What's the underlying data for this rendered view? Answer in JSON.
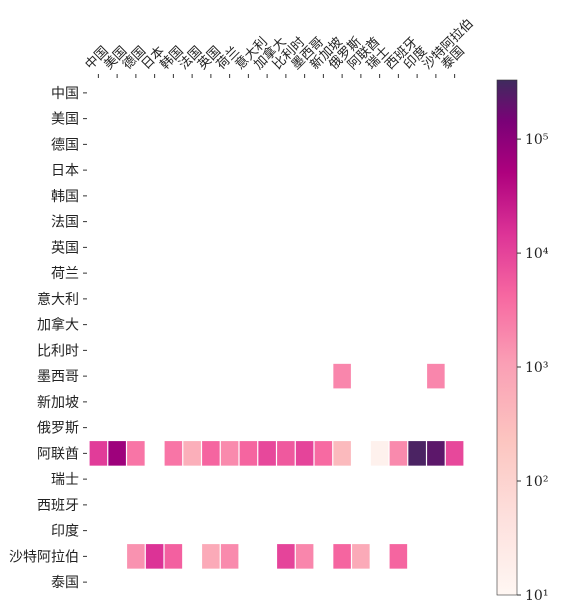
{
  "chart_data": {
    "type": "heatmap",
    "title": "",
    "xlabel": "",
    "ylabel": "",
    "x_categories": [
      "中国",
      "美国",
      "德国",
      "日本",
      "韩国",
      "法国",
      "英国",
      "荷兰",
      "意大利",
      "加拿大",
      "比利时",
      "墨西哥",
      "新加坡",
      "俄罗斯",
      "阿联酋",
      "瑞士",
      "西班牙",
      "印度",
      "沙特阿拉伯",
      "泰国"
    ],
    "y_categories": [
      "中国",
      "美国",
      "德国",
      "日本",
      "韩国",
      "法国",
      "英国",
      "荷兰",
      "意大利",
      "加拿大",
      "比利时",
      "墨西哥",
      "新加坡",
      "俄罗斯",
      "阿联酋",
      "瑞士",
      "西班牙",
      "印度",
      "沙特阿拉伯",
      "泰国"
    ],
    "color_scale": "log",
    "colormap": "RdPu",
    "color_range": [
      10,
      330000
    ],
    "colorbar_ticks": [
      {
        "value": 10,
        "label": "10¹"
      },
      {
        "value": 100,
        "label": "10²"
      },
      {
        "value": 1000,
        "label": "10³"
      },
      {
        "value": 10000,
        "label": "10⁴"
      },
      {
        "value": 100000,
        "label": "10⁵"
      }
    ],
    "cells": [
      {
        "row": "墨西哥",
        "col": "俄罗斯",
        "value": 2000
      },
      {
        "row": "墨西哥",
        "col": "沙特阿拉伯",
        "value": 2000
      },
      {
        "row": "阿联酋",
        "col": "中国",
        "value": 12000
      },
      {
        "row": "阿联酋",
        "col": "美国",
        "value": 70000
      },
      {
        "row": "阿联酋",
        "col": "德国",
        "value": 3000
      },
      {
        "row": "阿联酋",
        "col": "韩国",
        "value": 3000
      },
      {
        "row": "阿联酋",
        "col": "法国",
        "value": 550
      },
      {
        "row": "阿联酋",
        "col": "英国",
        "value": 4500
      },
      {
        "row": "阿联酋",
        "col": "荷兰",
        "value": 1800
      },
      {
        "row": "阿联酋",
        "col": "意大利",
        "value": 4500
      },
      {
        "row": "阿联酋",
        "col": "加拿大",
        "value": 9000
      },
      {
        "row": "阿联酋",
        "col": "比利时",
        "value": 6000
      },
      {
        "row": "阿联酋",
        "col": "墨西哥",
        "value": 10000
      },
      {
        "row": "阿联酋",
        "col": "新加坡",
        "value": 4000
      },
      {
        "row": "阿联酋",
        "col": "俄罗斯",
        "value": 350
      },
      {
        "row": "阿联酋",
        "col": "瑞士",
        "value": 15
      },
      {
        "row": "阿联酋",
        "col": "西班牙",
        "value": 1800
      },
      {
        "row": "阿联酋",
        "col": "印度",
        "value": 280000
      },
      {
        "row": "阿联酋",
        "col": "沙特阿拉伯",
        "value": 220000
      },
      {
        "row": "阿联酋",
        "col": "泰国",
        "value": 9000
      },
      {
        "row": "沙特阿拉伯",
        "col": "德国",
        "value": 1500
      },
      {
        "row": "沙特阿拉伯",
        "col": "日本",
        "value": 15000
      },
      {
        "row": "沙特阿拉伯",
        "col": "韩国",
        "value": 5000
      },
      {
        "row": "沙特阿拉伯",
        "col": "英国",
        "value": 700
      },
      {
        "row": "沙特阿拉伯",
        "col": "荷兰",
        "value": 1800
      },
      {
        "row": "沙特阿拉伯",
        "col": "比利时",
        "value": 10000
      },
      {
        "row": "沙特阿拉伯",
        "col": "墨西哥",
        "value": 2000
      },
      {
        "row": "沙特阿拉伯",
        "col": "俄罗斯",
        "value": 4500
      },
      {
        "row": "沙特阿拉伯",
        "col": "阿联酋",
        "value": 700
      },
      {
        "row": "沙特阿拉伯",
        "col": "西班牙",
        "value": 4500
      }
    ]
  }
}
